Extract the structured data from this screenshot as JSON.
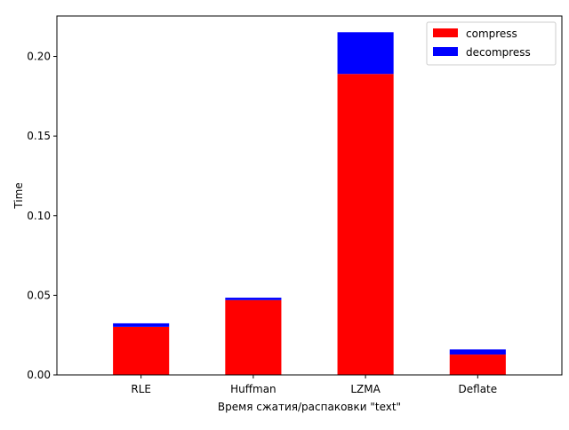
{
  "chart_data": {
    "type": "bar",
    "stacked": true,
    "title": "",
    "xlabel": "Время сжатия/распаковки \"text\"",
    "ylabel": "Time",
    "categories": [
      "RLE",
      "Huffman",
      "LZMA",
      "Deflate"
    ],
    "series": [
      {
        "name": "compress",
        "values": [
          0.0302,
          0.047,
          0.189,
          0.0128
        ],
        "color": "#ff0000"
      },
      {
        "name": "decompress",
        "values": [
          0.0022,
          0.0015,
          0.0262,
          0.0032
        ],
        "color": "#0000ff"
      }
    ],
    "ylim": [
      0,
      0.2254
    ],
    "yticks": [
      0.0,
      0.05,
      0.1,
      0.15,
      0.2
    ],
    "ytick_labels": [
      "0.00",
      "0.05",
      "0.10",
      "0.15",
      "0.20"
    ],
    "grid": false,
    "legend_position": "top-right"
  }
}
